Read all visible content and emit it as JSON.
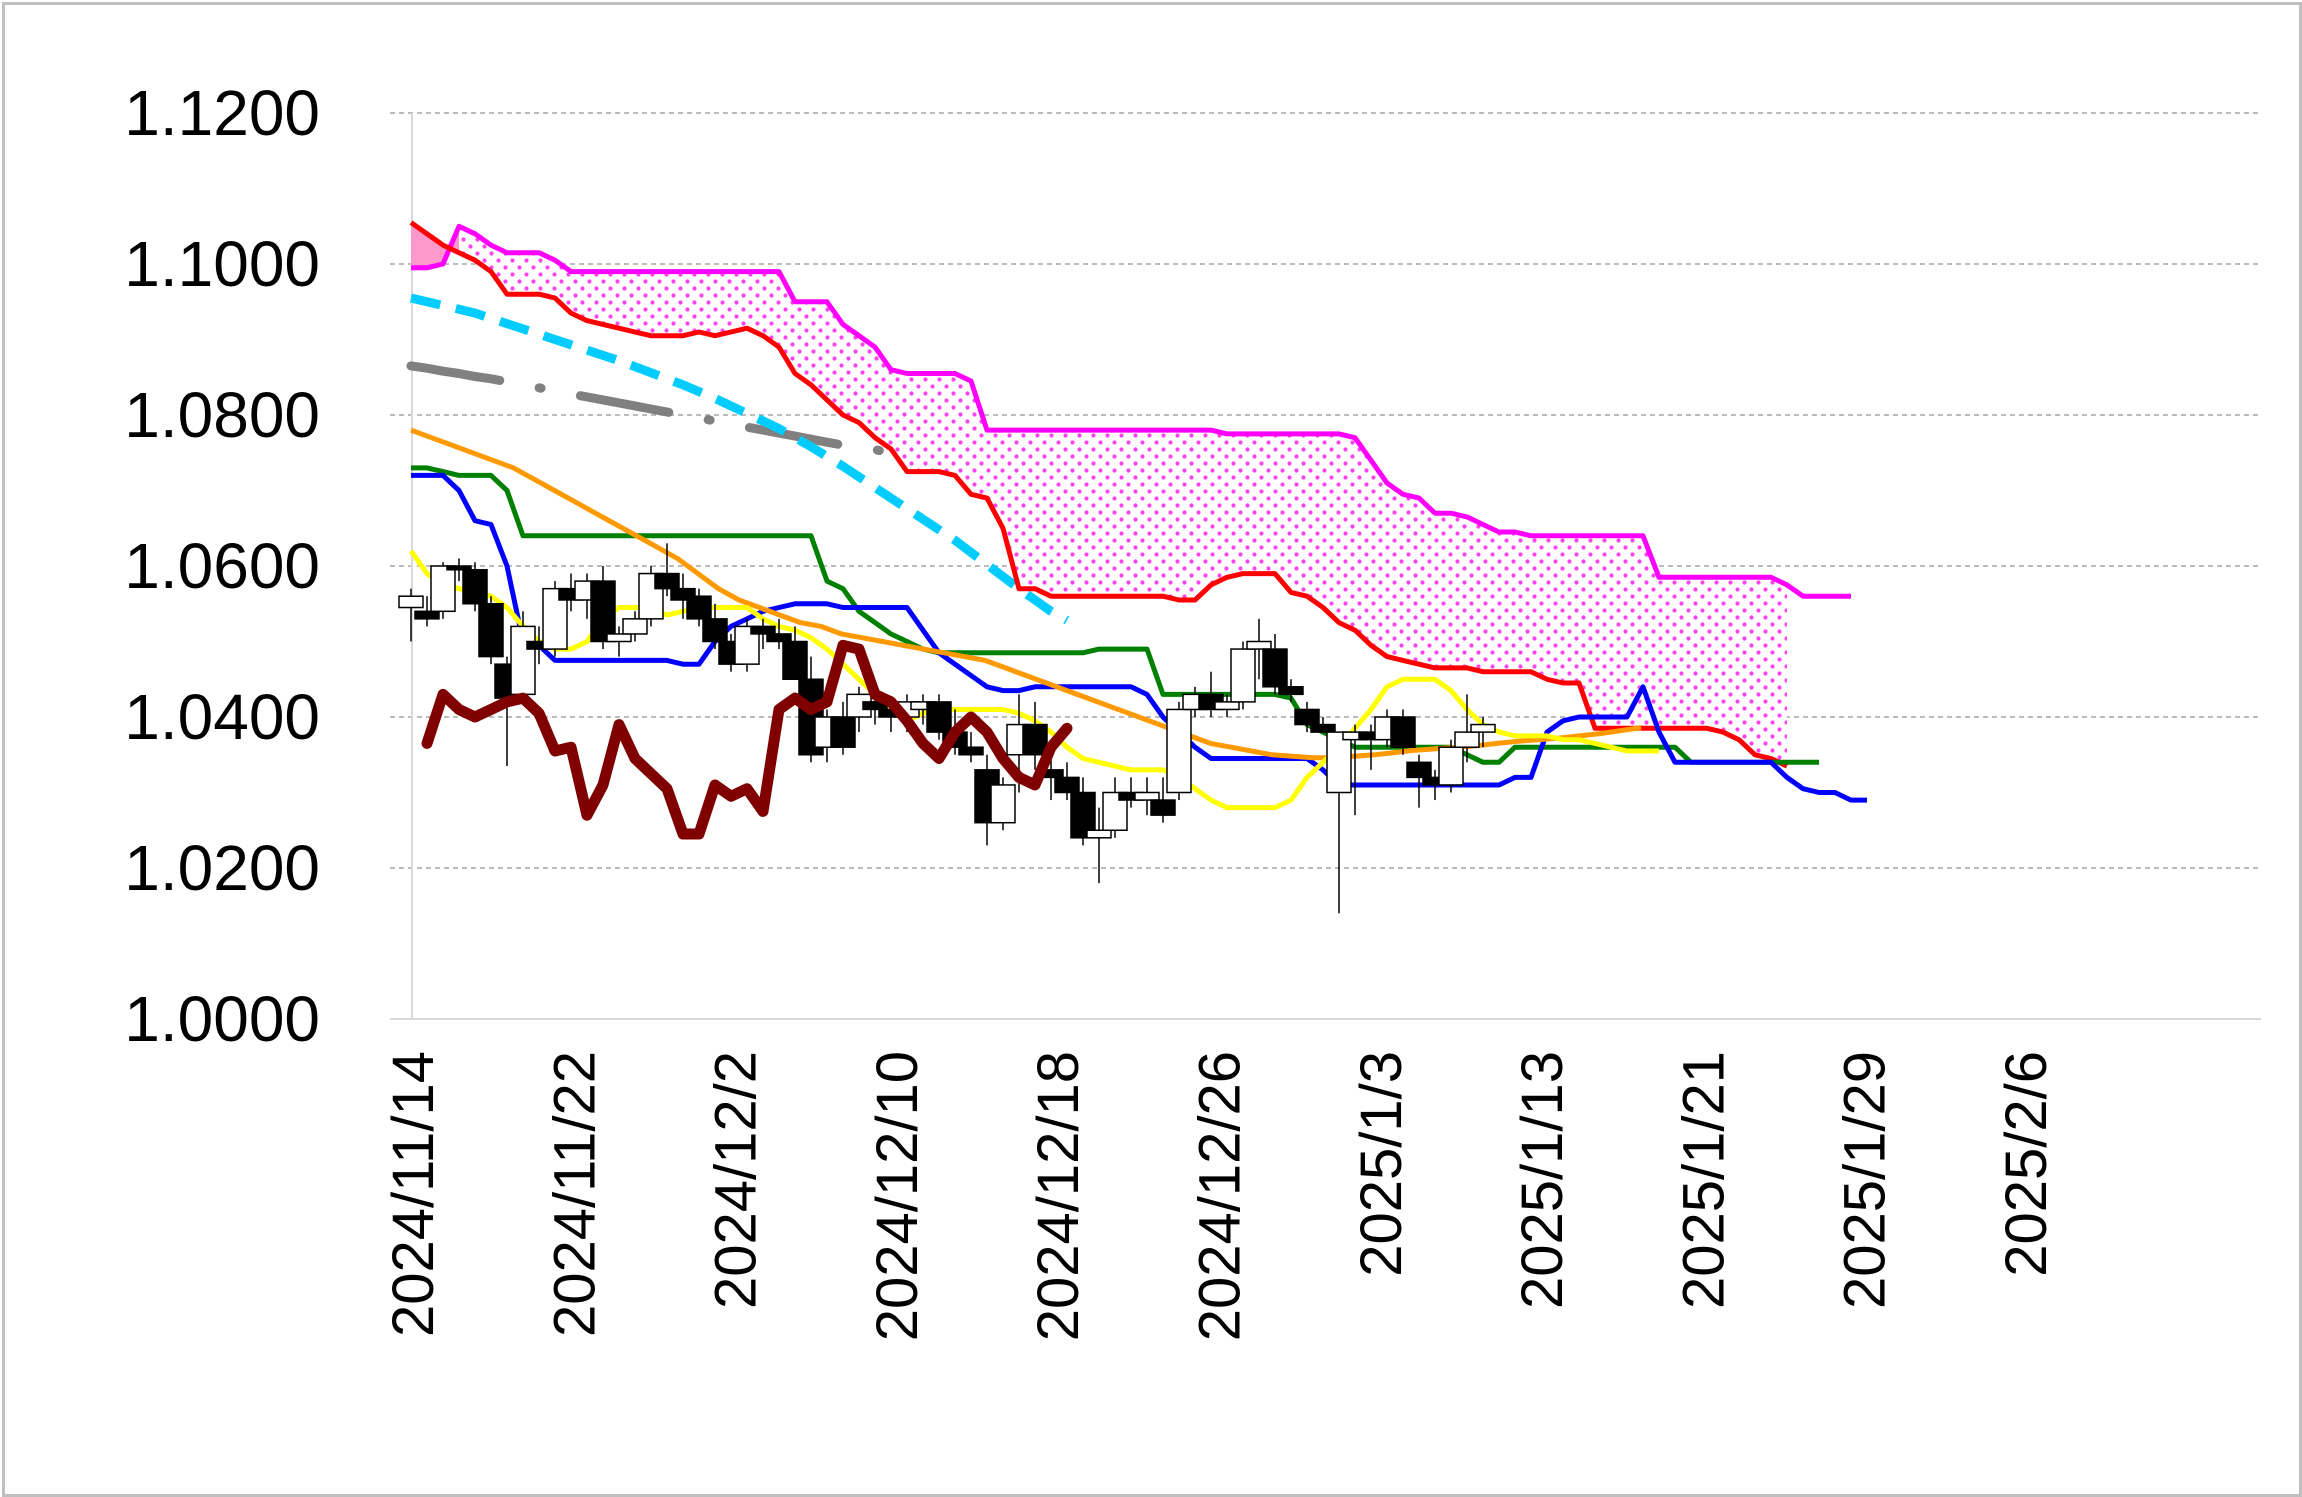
{
  "chart_data": {
    "type": "line",
    "title": "",
    "xlabel": "",
    "ylabel": "",
    "ylim": [
      1.0,
      1.12
    ],
    "y_ticks": [
      "1.0000",
      "1.0200",
      "1.0400",
      "1.0600",
      "1.0800",
      "1.1000",
      "1.1200"
    ],
    "x_tick_labels": [
      "2024/11/14",
      "2024/11/22",
      "2024/12/2",
      "2024/12/10",
      "2024/12/18",
      "2024/12/26",
      "2025/1/3",
      "2025/1/13",
      "2025/1/21",
      "2025/1/29",
      "2025/2/6"
    ],
    "grid": "horizontal-dashed",
    "legend": "none",
    "colors": {
      "grid": "#a6a6a6",
      "axis": "#d9d9d9",
      "cloud_fill": "#ff66ff",
      "cloud_bull_fill": "#ff99cc",
      "span_b": "#ff00ff",
      "span_a": "#ff0000",
      "kijun": "#008000",
      "tenkan": "#0000ff",
      "sma_short": "#ffff00",
      "sma_long": "#ff9900",
      "chikou": "#800000",
      "dash_cyan": "#00ccff",
      "dash_gray": "#808080",
      "candle_up": "#ffffff",
      "candle_down": "#000000"
    },
    "ohlc": [
      [
        1.0545,
        1.057,
        1.05,
        1.056
      ],
      [
        1.054,
        1.056,
        1.052,
        1.053
      ],
      [
        1.054,
        1.0605,
        1.053,
        1.06
      ],
      [
        1.06,
        1.061,
        1.058,
        1.0595
      ],
      [
        1.0595,
        1.0605,
        1.054,
        1.055
      ],
      [
        1.055,
        1.056,
        1.047,
        1.048
      ],
      [
        1.047,
        1.048,
        1.0335,
        1.0425
      ],
      [
        1.043,
        1.054,
        1.042,
        1.052
      ],
      [
        1.05,
        1.052,
        1.047,
        1.049
      ],
      [
        1.049,
        1.058,
        1.048,
        1.057
      ],
      [
        1.057,
        1.059,
        1.054,
        1.0555
      ],
      [
        1.0555,
        1.059,
        1.053,
        1.058
      ],
      [
        1.058,
        1.06,
        1.049,
        1.05
      ],
      [
        1.05,
        1.052,
        1.048,
        1.051
      ],
      [
        1.051,
        1.054,
        1.05,
        1.053
      ],
      [
        1.053,
        1.06,
        1.052,
        1.059
      ],
      [
        1.059,
        1.063,
        1.056,
        1.057
      ],
      [
        1.057,
        1.059,
        1.053,
        1.0555
      ],
      [
        1.056,
        1.057,
        1.052,
        1.053
      ],
      [
        1.053,
        1.055,
        1.049,
        1.05
      ],
      [
        1.05,
        1.051,
        1.046,
        1.047
      ],
      [
        1.047,
        1.053,
        1.046,
        1.052
      ],
      [
        1.052,
        1.053,
        1.049,
        1.051
      ],
      [
        1.051,
        1.053,
        1.049,
        1.05
      ],
      [
        1.05,
        1.052,
        1.046,
        1.045
      ],
      [
        1.045,
        1.048,
        1.034,
        1.035
      ],
      [
        1.036,
        1.041,
        1.034,
        1.04
      ],
      [
        1.04,
        1.042,
        1.035,
        1.036
      ],
      [
        1.04,
        1.044,
        1.038,
        1.043
      ],
      [
        1.042,
        1.044,
        1.039,
        1.041
      ],
      [
        1.041,
        1.042,
        1.038,
        1.04
      ],
      [
        1.04,
        1.043,
        1.038,
        1.042
      ],
      [
        1.041,
        1.043,
        1.039,
        1.042
      ],
      [
        1.042,
        1.043,
        1.037,
        1.038
      ],
      [
        1.038,
        1.041,
        1.035,
        1.036
      ],
      [
        1.036,
        1.038,
        1.034,
        1.035
      ],
      [
        1.033,
        1.035,
        1.023,
        1.026
      ],
      [
        1.026,
        1.032,
        1.025,
        1.031
      ],
      [
        1.035,
        1.043,
        1.03,
        1.039
      ],
      [
        1.039,
        1.042,
        1.033,
        1.035
      ],
      [
        1.033,
        1.037,
        1.029,
        1.032
      ],
      [
        1.032,
        1.034,
        1.029,
        1.03
      ],
      [
        1.03,
        1.032,
        1.023,
        1.024
      ],
      [
        1.024,
        1.028,
        1.018,
        1.025
      ],
      [
        1.025,
        1.032,
        1.024,
        1.03
      ],
      [
        1.03,
        1.032,
        1.028,
        1.029
      ],
      [
        1.029,
        1.032,
        1.027,
        1.03
      ],
      [
        1.029,
        1.032,
        1.026,
        1.027
      ],
      [
        1.03,
        1.042,
        1.029,
        1.041
      ],
      [
        1.041,
        1.044,
        1.04,
        1.043
      ],
      [
        1.043,
        1.046,
        1.04,
        1.041
      ],
      [
        1.041,
        1.043,
        1.04,
        1.042
      ],
      [
        1.042,
        1.05,
        1.041,
        1.049
      ],
      [
        1.049,
        1.053,
        1.045,
        1.05
      ],
      [
        1.049,
        1.051,
        1.043,
        1.044
      ],
      [
        1.044,
        1.045,
        1.042,
        1.043
      ],
      [
        1.041,
        1.042,
        1.038,
        1.039
      ],
      [
        1.039,
        1.04,
        1.038,
        1.038
      ],
      [
        1.03,
        1.037,
        1.014,
        1.038
      ],
      [
        1.037,
        1.039,
        1.027,
        1.038
      ],
      [
        1.038,
        1.039,
        1.033,
        1.037
      ],
      [
        1.037,
        1.041,
        1.036,
        1.04
      ],
      [
        1.04,
        1.041,
        1.035,
        1.036
      ],
      [
        1.034,
        1.035,
        1.028,
        1.032
      ],
      [
        1.032,
        1.033,
        1.029,
        1.031
      ],
      [
        1.031,
        1.037,
        1.03,
        1.036
      ],
      [
        1.036,
        1.043,
        1.034,
        1.038
      ],
      [
        1.038,
        1.04,
        1.036,
        1.039
      ]
    ],
    "series": [
      {
        "key": "span_b",
        "values": [
          1.0995,
          1.0995,
          1.1,
          1.105,
          1.104,
          1.1025,
          1.1015,
          1.1015,
          1.1015,
          1.1005,
          1.099,
          1.099,
          1.099,
          1.099,
          1.099,
          1.099,
          1.099,
          1.099,
          1.099,
          1.099,
          1.099,
          1.099,
          1.099,
          1.099,
          1.095,
          1.095,
          1.095,
          1.092,
          1.0905,
          1.089,
          1.086,
          1.0855,
          1.0855,
          1.0855,
          1.0855,
          1.0845,
          1.078,
          1.078,
          1.078,
          1.078,
          1.078,
          1.078,
          1.078,
          1.078,
          1.078,
          1.078,
          1.078,
          1.078,
          1.078,
          1.078,
          1.078,
          1.0775,
          1.0775,
          1.0775,
          1.0775,
          1.0775,
          1.0775,
          1.0775,
          1.0775,
          1.077,
          1.074,
          1.071,
          1.0695,
          1.069,
          1.067,
          1.067,
          1.0665,
          1.0655,
          1.0645,
          1.0645,
          1.064,
          1.064,
          1.064,
          1.064,
          1.064,
          1.064,
          1.064,
          1.064,
          1.0585,
          1.0585,
          1.0585,
          1.0585,
          1.0585,
          1.0585,
          1.0585,
          1.0585,
          1.0575,
          1.056,
          1.056,
          1.056,
          1.056
        ]
      },
      {
        "key": "span_a",
        "values": [
          1.1055,
          1.104,
          1.1025,
          1.1015,
          1.1005,
          1.099,
          1.096,
          1.096,
          1.096,
          1.0955,
          1.0935,
          1.0925,
          1.092,
          1.0915,
          1.091,
          1.0905,
          1.0905,
          1.0905,
          1.091,
          1.0905,
          1.091,
          1.0915,
          1.0905,
          1.089,
          1.0855,
          1.084,
          1.082,
          1.08,
          1.079,
          1.077,
          1.0755,
          1.0725,
          1.0725,
          1.0725,
          1.072,
          1.0695,
          1.069,
          1.065,
          1.057,
          1.057,
          1.056,
          1.056,
          1.056,
          1.056,
          1.056,
          1.056,
          1.056,
          1.056,
          1.0555,
          1.0555,
          1.0575,
          1.0585,
          1.059,
          1.059,
          1.059,
          1.0565,
          1.056,
          1.0545,
          1.0525,
          1.0515,
          1.0495,
          1.048,
          1.0475,
          1.047,
          1.0465,
          1.0465,
          1.0465,
          1.046,
          1.046,
          1.046,
          1.046,
          1.045,
          1.0445,
          1.0445,
          1.0385,
          1.0385,
          1.0385,
          1.0385,
          1.0385,
          1.0385,
          1.0385,
          1.0385,
          1.038,
          1.037,
          1.035,
          1.0345,
          1.0335
        ]
      },
      {
        "key": "kijun",
        "values": [
          1.073,
          1.073,
          1.0725,
          1.072,
          1.072,
          1.072,
          1.07,
          1.064,
          1.064,
          1.064,
          1.064,
          1.064,
          1.064,
          1.064,
          1.064,
          1.064,
          1.064,
          1.064,
          1.064,
          1.064,
          1.064,
          1.064,
          1.064,
          1.064,
          1.064,
          1.064,
          1.058,
          1.057,
          1.054,
          1.0525,
          1.051,
          1.05,
          1.049,
          1.0485,
          1.0485,
          1.0485,
          1.0485,
          1.0485,
          1.0485,
          1.0485,
          1.0485,
          1.0485,
          1.0485,
          1.049,
          1.049,
          1.049,
          1.049,
          1.043,
          1.043,
          1.043,
          1.043,
          1.043,
          1.043,
          1.043,
          1.043,
          1.0425,
          1.039,
          1.038,
          1.037,
          1.036,
          1.036,
          1.036,
          1.036,
          1.036,
          1.036,
          1.036,
          1.035,
          1.034,
          1.034,
          1.036,
          1.036,
          1.036,
          1.036,
          1.036,
          1.036,
          1.036,
          1.036,
          1.036,
          1.036,
          1.036,
          1.034,
          1.034,
          1.034,
          1.034,
          1.034,
          1.034,
          1.034,
          1.034,
          1.034
        ]
      },
      {
        "key": "tenkan",
        "values": [
          1.072,
          1.072,
          1.072,
          1.07,
          1.066,
          1.0655,
          1.06,
          1.05,
          1.0495,
          1.0475,
          1.0475,
          1.0475,
          1.0475,
          1.0475,
          1.0475,
          1.0475,
          1.0475,
          1.047,
          1.047,
          1.05,
          1.052,
          1.053,
          1.054,
          1.0545,
          1.055,
          1.055,
          1.055,
          1.0545,
          1.0545,
          1.0545,
          1.0545,
          1.0545,
          1.0515,
          1.0485,
          1.047,
          1.0455,
          1.044,
          1.0435,
          1.0435,
          1.044,
          1.044,
          1.044,
          1.044,
          1.044,
          1.044,
          1.044,
          1.043,
          1.04,
          1.038,
          1.036,
          1.0345,
          1.0345,
          1.0345,
          1.0345,
          1.0345,
          1.0345,
          1.0345,
          1.033,
          1.031,
          1.031,
          1.031,
          1.031,
          1.031,
          1.031,
          1.031,
          1.031,
          1.031,
          1.031,
          1.031,
          1.032,
          1.032,
          1.038,
          1.0395,
          1.04,
          1.04,
          1.04,
          1.04,
          1.044,
          1.038,
          1.034,
          1.034,
          1.034,
          1.034,
          1.034,
          1.034,
          1.034,
          1.032,
          1.0305,
          1.03,
          1.03,
          1.029,
          1.029
        ]
      },
      {
        "key": "sma_short",
        "values": [
          1.062,
          1.059,
          1.0575,
          1.057,
          1.0565,
          1.056,
          1.0545,
          1.052,
          1.05,
          1.049,
          1.049,
          1.05,
          1.053,
          1.0545,
          1.0545,
          1.0545,
          1.0535,
          1.054,
          1.0545,
          1.0545,
          1.0545,
          1.0545,
          1.053,
          1.052,
          1.0515,
          1.0505,
          1.049,
          1.047,
          1.045,
          1.043,
          1.041,
          1.0395,
          1.0405,
          1.041,
          1.041,
          1.041,
          1.041,
          1.041,
          1.0405,
          1.0395,
          1.038,
          1.036,
          1.0345,
          1.034,
          1.0335,
          1.033,
          1.033,
          1.033,
          1.032,
          1.0305,
          1.029,
          1.028,
          1.028,
          1.028,
          1.028,
          1.029,
          1.032,
          1.034,
          1.036,
          1.0385,
          1.041,
          1.044,
          1.045,
          1.045,
          1.045,
          1.0435,
          1.041,
          1.039,
          1.038,
          1.0375,
          1.0375,
          1.0375,
          1.037,
          1.037,
          1.0365,
          1.036,
          1.0355,
          1.0355,
          1.0355
        ]
      },
      {
        "key": "sma_long",
        "values": [
          1.078,
          1.077,
          1.076,
          1.075,
          1.074,
          1.073,
          1.0715,
          1.07,
          1.0685,
          1.067,
          1.0655,
          1.064,
          1.0625,
          1.061,
          1.059,
          1.057,
          1.0555,
          1.0545,
          1.0535,
          1.0525,
          1.052,
          1.051,
          1.0505,
          1.05,
          1.0495,
          1.049,
          1.0485,
          1.048,
          1.0475,
          1.0465,
          1.0455,
          1.0445,
          1.0435,
          1.0425,
          1.0415,
          1.0405,
          1.0395,
          1.0385,
          1.0375,
          1.0365,
          1.036,
          1.0355,
          1.035,
          1.0348,
          1.0346,
          1.0346,
          1.0348,
          1.035,
          1.0353,
          1.0356,
          1.0358,
          1.036,
          1.0362,
          1.0365,
          1.0368,
          1.037,
          1.0372,
          1.0375,
          1.0378,
          1.0382,
          1.0386
        ]
      },
      {
        "key": "chikou",
        "values": [
          1.0365,
          1.043,
          1.041,
          1.04,
          1.041,
          1.042,
          1.0425,
          1.0405,
          1.0355,
          1.036,
          1.027,
          1.031,
          1.039,
          1.0345,
          1.0325,
          1.0305,
          1.0245,
          1.0245,
          1.031,
          1.0295,
          1.0305,
          1.0275,
          1.041,
          1.0425,
          1.041,
          1.042,
          1.0495,
          1.049,
          1.043,
          1.042,
          1.0395,
          1.0365,
          1.0345,
          1.038,
          1.04,
          1.038,
          1.0345,
          1.032,
          1.031,
          1.036,
          1.0385
        ]
      },
      {
        "key": "dash_cyan",
        "values": [
          1.0955,
          1.095,
          1.0945,
          1.094,
          1.0935,
          1.0928,
          1.0921,
          1.0914,
          1.0907,
          1.09,
          1.0893,
          1.0886,
          1.0879,
          1.0872,
          1.0864,
          1.0856,
          1.0848,
          1.084,
          1.0831,
          1.0822,
          1.0812,
          1.0802,
          1.0792,
          1.0782,
          1.077,
          1.0758,
          1.0745,
          1.0732,
          1.0718,
          1.0704,
          1.069,
          1.0676,
          1.0662,
          1.0648,
          1.0634,
          1.0618,
          1.0602,
          1.0586,
          1.057,
          1.0555,
          1.054,
          1.0528
        ]
      },
      {
        "key": "dash_gray",
        "values": [
          1.0865,
          1.0862,
          1.0858,
          1.0855,
          1.0851,
          1.0848,
          1.0844,
          1.084,
          1.0836,
          1.0832,
          1.0828,
          1.0824,
          1.082,
          1.0816,
          1.0812,
          1.0808,
          1.0804,
          1.08,
          1.0796,
          1.0792,
          1.0788,
          1.0784,
          1.078,
          1.0776,
          1.0772,
          1.0768,
          1.0764,
          1.076,
          1.0757,
          1.0754,
          1.075
        ]
      }
    ]
  }
}
